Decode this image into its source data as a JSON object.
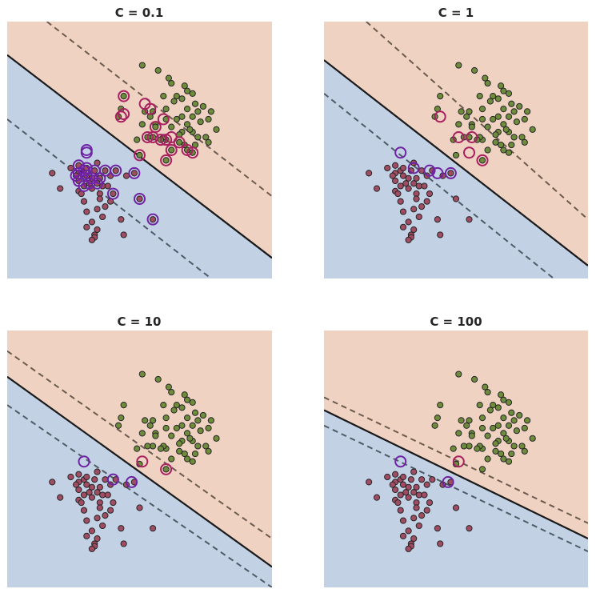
{
  "figure": {
    "title": ""
  },
  "chart_data": {
    "type": "scatter",
    "description_note": "Linear SVM decision regions for four values of the regularization parameter C; two classes, support vectors circled.",
    "xlim": [
      0,
      10
    ],
    "ylim": [
      0,
      10
    ],
    "colors": {
      "region_pos": "#efd2c2",
      "region_neg": "#c2d2e4",
      "class_pos_fill": "#6e8c3c",
      "class_neg_fill": "#a04c62",
      "point_edge": "#262626",
      "sv_ring_pos": "#a8205f",
      "sv_ring_neg": "#6f22a3",
      "decision_line": "#1a1a1a",
      "margin_pos": "#6b5a4e",
      "margin_neg": "#4e5a66"
    },
    "class_pos": [
      [
        5.1,
        8.3
      ],
      [
        5.7,
        8.1
      ],
      [
        6.1,
        7.8
      ],
      [
        6.2,
        7.6
      ],
      [
        6.7,
        7.5
      ],
      [
        6.8,
        7.3
      ],
      [
        6.6,
        7.0
      ],
      [
        7.0,
        7.2
      ],
      [
        6.4,
        7.1
      ],
      [
        5.9,
        7.1
      ],
      [
        6.3,
        6.9
      ],
      [
        7.4,
        6.7
      ],
      [
        7.1,
        6.8
      ],
      [
        5.5,
        6.5
      ],
      [
        6.0,
        6.6
      ],
      [
        6.8,
        6.6
      ],
      [
        7.7,
        6.5
      ],
      [
        7.0,
        6.3
      ],
      [
        7.2,
        6.5
      ],
      [
        6.6,
        6.3
      ],
      [
        4.4,
        7.1
      ],
      [
        4.3,
        6.6
      ],
      [
        5.2,
        6.5
      ],
      [
        5.4,
        6.3
      ],
      [
        7.6,
        6.2
      ],
      [
        6.0,
        6.2
      ],
      [
        6.4,
        6.2
      ],
      [
        7.3,
        6.1
      ],
      [
        5.1,
        6.0
      ],
      [
        6.8,
        6.0
      ],
      [
        6.2,
        5.9
      ],
      [
        7.0,
        5.7
      ],
      [
        7.9,
        5.8
      ],
      [
        4.2,
        6.3
      ],
      [
        5.6,
        6.0
      ],
      [
        6.6,
        5.7
      ],
      [
        7.5,
        5.5
      ],
      [
        7.2,
        5.5
      ],
      [
        6.0,
        5.4
      ],
      [
        6.5,
        5.3
      ],
      [
        7.6,
        5.3
      ],
      [
        5.5,
        5.5
      ],
      [
        5.9,
        5.5
      ],
      [
        6.7,
        5.2
      ],
      [
        5.3,
        5.5
      ],
      [
        6.2,
        5.0
      ],
      [
        5.8,
        5.4
      ],
      [
        4.9,
        5.4
      ],
      [
        6.8,
        5.0
      ],
      [
        7.0,
        4.9
      ],
      [
        7.1,
        5.2
      ],
      [
        6.5,
        5.6
      ],
      [
        5.0,
        4.8
      ],
      [
        6.0,
        4.6
      ],
      [
        6.9,
        5.8
      ],
      [
        5.6,
        5.9
      ]
    ],
    "class_neg": [
      [
        2.9,
        4.2
      ],
      [
        3.0,
        4.3
      ],
      [
        3.3,
        4.2
      ],
      [
        3.7,
        4.2
      ],
      [
        4.1,
        4.2
      ],
      [
        4.8,
        4.1
      ],
      [
        3.0,
        4.0
      ],
      [
        2.7,
        4.1
      ],
      [
        2.6,
        4.0
      ],
      [
        2.7,
        3.8
      ],
      [
        2.9,
        3.6
      ],
      [
        3.2,
        3.9
      ],
      [
        3.5,
        3.9
      ],
      [
        3.4,
        3.7
      ],
      [
        3.6,
        3.6
      ],
      [
        3.1,
        3.7
      ],
      [
        3.2,
        3.5
      ],
      [
        3.5,
        3.3
      ],
      [
        3.9,
        4.0
      ],
      [
        1.7,
        4.1
      ],
      [
        2.4,
        4.3
      ],
      [
        2.7,
        4.4
      ],
      [
        3.4,
        4.5
      ],
      [
        2.0,
        3.5
      ],
      [
        2.7,
        3.4
      ],
      [
        2.8,
        3.3
      ],
      [
        4.0,
        3.3
      ],
      [
        3.5,
        3.1
      ],
      [
        3.9,
        3.0
      ],
      [
        5.0,
        3.1
      ],
      [
        3.4,
        2.7
      ],
      [
        3.0,
        2.6
      ],
      [
        3.6,
        2.4
      ],
      [
        3.2,
        2.2
      ],
      [
        4.3,
        2.3
      ],
      [
        3.0,
        2.0
      ],
      [
        3.4,
        1.9
      ],
      [
        3.3,
        1.7
      ],
      [
        4.4,
        1.7
      ],
      [
        3.3,
        1.6
      ],
      [
        3.2,
        1.5
      ],
      [
        3.7,
        2.8
      ],
      [
        5.5,
        2.3
      ],
      [
        2.9,
        3.0
      ],
      [
        3.8,
        3.6
      ],
      [
        4.5,
        4.0
      ]
    ],
    "series": [
      {
        "name": "C = 0.1",
        "line": [
          [
            0,
            8.7
          ],
          [
            10,
            0.8
          ]
        ],
        "margin_pos": [
          [
            1.5,
            10
          ],
          [
            10,
            3.2
          ]
        ],
        "margin_neg": [
          [
            0,
            6.2
          ],
          [
            7.7,
            0
          ]
        ],
        "sv_pos": [
          [
            4.4,
            7.1
          ],
          [
            5.2,
            6.8
          ],
          [
            5.4,
            6.6
          ],
          [
            4.3,
            6.3
          ],
          [
            4.4,
            6.4
          ],
          [
            5.9,
            6.2
          ],
          [
            5.6,
            5.9
          ],
          [
            5.3,
            5.5
          ],
          [
            6.2,
            5.5
          ],
          [
            5.5,
            5.5
          ],
          [
            6.0,
            5.4
          ],
          [
            6.5,
            5.3
          ],
          [
            5.8,
            5.4
          ],
          [
            6.2,
            5.0
          ],
          [
            5.0,
            4.8
          ],
          [
            6.0,
            4.6
          ],
          [
            6.8,
            5.0
          ],
          [
            7.0,
            4.9
          ]
        ],
        "sv_neg": [
          [
            2.9,
            4.2
          ],
          [
            3.0,
            4.3
          ],
          [
            3.3,
            4.2
          ],
          [
            3.7,
            4.2
          ],
          [
            4.1,
            4.2
          ],
          [
            4.8,
            4.1
          ],
          [
            2.7,
            4.1
          ],
          [
            2.6,
            4.0
          ],
          [
            2.7,
            3.8
          ],
          [
            2.9,
            3.6
          ],
          [
            3.2,
            3.9
          ],
          [
            3.5,
            3.9
          ],
          [
            3.4,
            3.7
          ],
          [
            3.1,
            3.7
          ],
          [
            3.0,
            4.0
          ],
          [
            2.7,
            4.4
          ],
          [
            3.0,
            4.9
          ],
          [
            3.0,
            5.0
          ],
          [
            4.0,
            3.3
          ],
          [
            5.0,
            3.1
          ],
          [
            5.5,
            2.3
          ]
        ]
      },
      {
        "name": "C = 1",
        "line": [
          [
            0,
            8.5
          ],
          [
            10,
            0.5
          ]
        ],
        "margin_pos": [
          [
            1.6,
            10
          ],
          [
            10,
            2.3
          ]
        ],
        "margin_neg": [
          [
            0,
            7.2
          ],
          [
            8.7,
            0
          ]
        ],
        "sv_pos": [
          [
            4.4,
            6.3
          ],
          [
            5.1,
            5.5
          ],
          [
            5.6,
            5.5
          ],
          [
            5.5,
            4.9
          ],
          [
            6.0,
            4.6
          ]
        ],
        "sv_neg": [
          [
            2.9,
            4.9
          ],
          [
            3.4,
            4.3
          ],
          [
            4.0,
            4.2
          ],
          [
            4.3,
            4.1
          ],
          [
            4.8,
            4.1
          ]
        ]
      },
      {
        "name": "C = 10",
        "line": [
          [
            0,
            8.2
          ],
          [
            10,
            0.8
          ]
        ],
        "margin_pos": [
          [
            0,
            9.2
          ],
          [
            10,
            1.9
          ]
        ],
        "margin_neg": [
          [
            0,
            7.1
          ],
          [
            10,
            0
          ]
        ],
        "sv_pos": [
          [
            5.1,
            4.9
          ],
          [
            6.0,
            4.6
          ]
        ],
        "sv_neg": [
          [
            2.9,
            4.9
          ],
          [
            4.0,
            4.2
          ],
          [
            4.7,
            4.1
          ]
        ]
      },
      {
        "name": "C = 100",
        "line": [
          [
            0,
            6.9
          ],
          [
            10,
            1.9
          ]
        ],
        "margin_pos": [
          [
            0,
            7.4
          ],
          [
            10,
            2.5
          ]
        ],
        "margin_neg": [
          [
            0,
            6.3
          ],
          [
            10,
            1.4
          ]
        ],
        "sv_pos": [
          [
            5.1,
            4.9
          ]
        ],
        "sv_neg": [
          [
            2.9,
            4.9
          ],
          [
            4.7,
            4.1
          ]
        ]
      }
    ]
  }
}
